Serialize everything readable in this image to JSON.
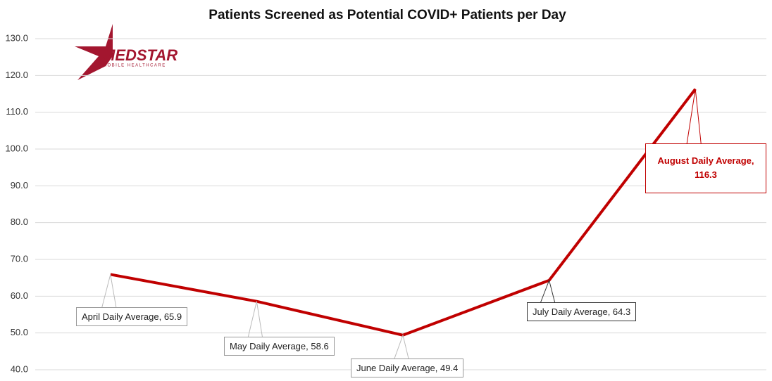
{
  "chart_data": {
    "type": "line",
    "title": "Patients Screened as Potential COVID+ Patients per Day",
    "logo": {
      "name": "MEDSTAR",
      "subtitle": "MOBILE HEALTHCARE"
    },
    "categories": [
      null,
      null,
      null,
      null,
      null
    ],
    "series": [
      {
        "name": null,
        "color": "#c00000",
        "values": [
          65.9,
          58.6,
          49.4,
          64.3,
          116.3
        ],
        "value_labels": [
          "April Daily Average, 65.9",
          "May Daily Average, 58.6",
          "June Daily Average, 49.4",
          "July Daily Average, 64.3",
          "August Daily Average, 116.3"
        ]
      }
    ],
    "ylim": [
      40,
      130
    ],
    "yticks": [
      {
        "value": 40,
        "label": "40.0"
      },
      {
        "value": 50,
        "label": "50.0"
      },
      {
        "value": 60,
        "label": "60.0"
      },
      {
        "value": 70,
        "label": "70.0"
      },
      {
        "value": 80,
        "label": "80.0"
      },
      {
        "value": 90,
        "label": "90.0"
      },
      {
        "value": 100,
        "label": "100.0"
      },
      {
        "value": 110,
        "label": "110.0"
      },
      {
        "value": 120,
        "label": "120.0"
      },
      {
        "value": 130,
        "label": "130.0"
      }
    ],
    "grid": true
  }
}
